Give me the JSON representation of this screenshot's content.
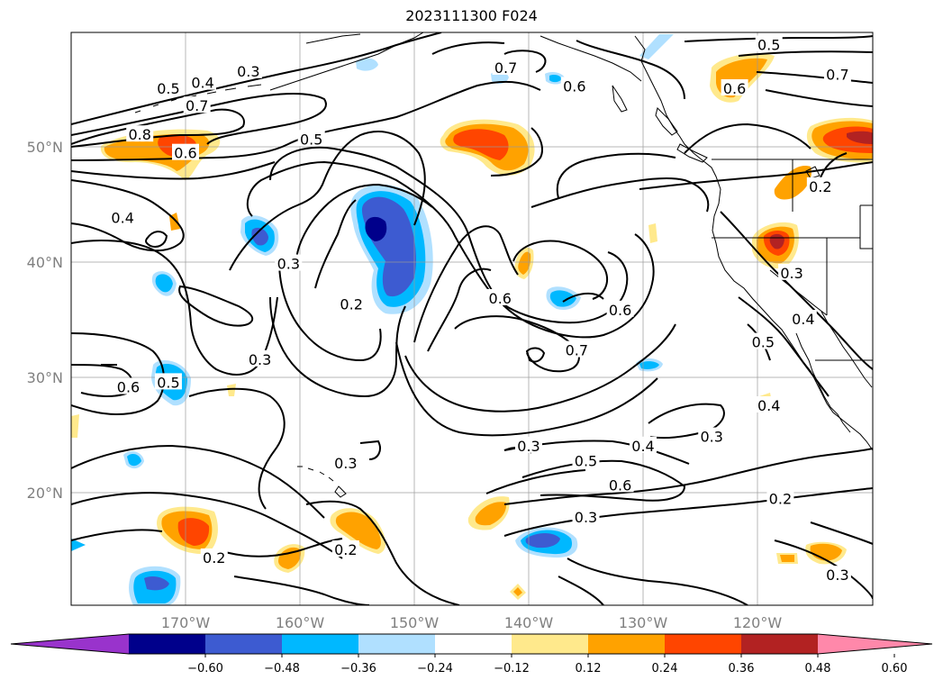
{
  "title": "2023111300 F024",
  "map": {
    "lat_ticks": [
      {
        "lat": 50,
        "label": "50°N"
      },
      {
        "lat": 40,
        "label": "40°N"
      },
      {
        "lat": 30,
        "label": "30°N"
      },
      {
        "lat": 20,
        "label": "20°N"
      }
    ],
    "lon_ticks": [
      {
        "lon": -170,
        "label": "170°W"
      },
      {
        "lon": -160,
        "label": "160°W"
      },
      {
        "lon": -150,
        "label": "150°W"
      },
      {
        "lon": -140,
        "label": "140°W"
      },
      {
        "lon": -130,
        "label": "130°W"
      },
      {
        "lon": -120,
        "label": "120°W"
      }
    ],
    "grid": true,
    "contour_color": "#000000",
    "contour_labels": [
      {
        "text": "0.3",
        "lon": -164.5,
        "lat": 56.5
      },
      {
        "text": "0.4",
        "lon": -168.5,
        "lat": 55.5
      },
      {
        "text": "0.5",
        "lon": -171.5,
        "lat": 55.0
      },
      {
        "text": "0.7",
        "lon": -169.0,
        "lat": 53.5
      },
      {
        "text": "0.8",
        "lon": -174.0,
        "lat": 51.0
      },
      {
        "text": "0.6",
        "lon": -170.0,
        "lat": 49.4
      },
      {
        "text": "0.5",
        "lon": -159.0,
        "lat": 50.6
      },
      {
        "text": "0.4",
        "lon": -175.5,
        "lat": 43.8
      },
      {
        "text": "0.3",
        "lon": -161.0,
        "lat": 39.8
      },
      {
        "text": "0.2",
        "lon": -155.5,
        "lat": 36.3
      },
      {
        "text": "0.6",
        "lon": -142.5,
        "lat": 36.8
      },
      {
        "text": "0.6",
        "lon": -132.0,
        "lat": 35.8
      },
      {
        "text": "0.7",
        "lon": -135.8,
        "lat": 32.3
      },
      {
        "text": "0.3",
        "lon": -163.5,
        "lat": 31.5
      },
      {
        "text": "0.6",
        "lon": -175.0,
        "lat": 29.1
      },
      {
        "text": "0.5",
        "lon": -171.5,
        "lat": 29.5
      },
      {
        "text": "0.3",
        "lon": -156.0,
        "lat": 22.5
      },
      {
        "text": "0.3",
        "lon": -140.0,
        "lat": 24.0
      },
      {
        "text": "0.5",
        "lon": -135.0,
        "lat": 22.7
      },
      {
        "text": "0.4",
        "lon": -130.0,
        "lat": 24.0
      },
      {
        "text": "0.3",
        "lon": -124.0,
        "lat": 24.8
      },
      {
        "text": "0.6",
        "lon": -132.0,
        "lat": 20.6
      },
      {
        "text": "0.3",
        "lon": -135.0,
        "lat": 17.8
      },
      {
        "text": "0.2",
        "lon": -156.0,
        "lat": 15.0
      },
      {
        "text": "0.2",
        "lon": -167.5,
        "lat": 14.3
      },
      {
        "text": "0.2",
        "lon": -118.0,
        "lat": 19.4
      },
      {
        "text": "0.3",
        "lon": -113.0,
        "lat": 12.8
      },
      {
        "text": "0.7",
        "lon": -142.0,
        "lat": 56.8
      },
      {
        "text": "0.6",
        "lon": -136.0,
        "lat": 55.2
      },
      {
        "text": "0.5",
        "lon": -119.0,
        "lat": 58.8
      },
      {
        "text": "0.6",
        "lon": -122.0,
        "lat": 55.0
      },
      {
        "text": "0.7",
        "lon": -113.0,
        "lat": 56.2
      },
      {
        "text": "0.3",
        "lon": -117.0,
        "lat": 39.0
      },
      {
        "text": "0.4",
        "lon": -116.0,
        "lat": 35.0
      },
      {
        "text": "0.5",
        "lon": -119.5,
        "lat": 33.0
      },
      {
        "text": "0.4",
        "lon": -119.0,
        "lat": 27.5
      },
      {
        "text": "0.2",
        "lon": -114.5,
        "lat": 46.5
      }
    ]
  },
  "colorbar": {
    "tick_labels": [
      "−0.60",
      "−0.48",
      "−0.36",
      "−0.24",
      "−0.12",
      "0.12",
      "0.24",
      "0.36",
      "0.48",
      "0.60"
    ],
    "colors": [
      "#9933cc",
      "#00008b",
      "#3d5bd1",
      "#00b8ff",
      "#b0e0ff",
      "#ffffff",
      "#ffe98c",
      "#ffa200",
      "#ff4500",
      "#b22222",
      "#ff88aa"
    ]
  },
  "shading_colors": {
    "neg1": "#b0e0ff",
    "neg2": "#00b8ff",
    "neg3": "#3d5bd1",
    "neg4": "#00008b",
    "pos1": "#ffe98c",
    "pos2": "#ffa200",
    "pos3": "#ff4500",
    "pos4": "#b22222"
  }
}
